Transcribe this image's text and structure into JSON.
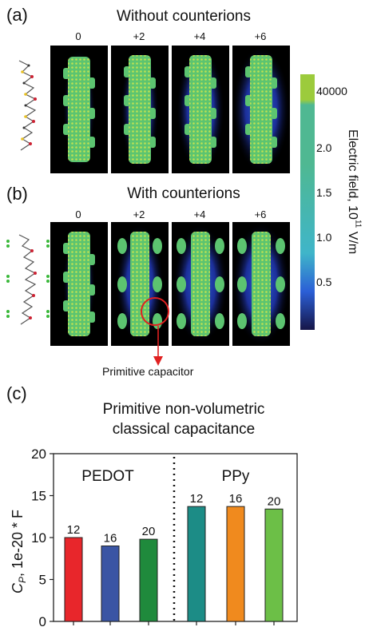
{
  "panel_a": {
    "letter": "(a)",
    "title": "Without counterions",
    "charges": [
      "0",
      "+2",
      "+4",
      "+6"
    ]
  },
  "panel_b": {
    "letter": "(b)",
    "title": "With counterions",
    "charges": [
      "0",
      "+2",
      "+4",
      "+6"
    ],
    "annotation": "Primitive capacitor"
  },
  "colorbar": {
    "ticks": [
      "40000",
      "2.0",
      "1.5",
      "1.0",
      "0.5"
    ],
    "label_main": "Electric field, 10",
    "label_exp": "11",
    "label_unit": " V/m",
    "colors": {
      "top": "#9ccb3c",
      "high": "#4fb892",
      "mid": "#3fb5c9",
      "low": "#2b5fd6",
      "bottom": "#161648"
    }
  },
  "panel_c": {
    "letter": "(c)"
  },
  "chart_data": {
    "type": "bar",
    "title": "Primitive non-volumetric classical capacitance",
    "title_lines": [
      "Primitive non-volumetric",
      "classical capacitance"
    ],
    "ylabel_symbol": "C",
    "ylabel_sub": "P",
    "ylabel_rest": ", 1e-20 * F",
    "ylim": [
      0,
      20
    ],
    "yticks": [
      0,
      5,
      10,
      15,
      20
    ],
    "groups": [
      "PEDOT",
      "PPy"
    ],
    "categories": [
      "12",
      "16",
      "20",
      "12",
      "16",
      "20"
    ],
    "values": [
      10.0,
      9.0,
      9.8,
      13.7,
      13.7,
      13.4
    ],
    "colors": [
      "#e8262b",
      "#3a55a4",
      "#1f8a3c",
      "#1c8c86",
      "#f08a1e",
      "#6cbf47"
    ]
  }
}
